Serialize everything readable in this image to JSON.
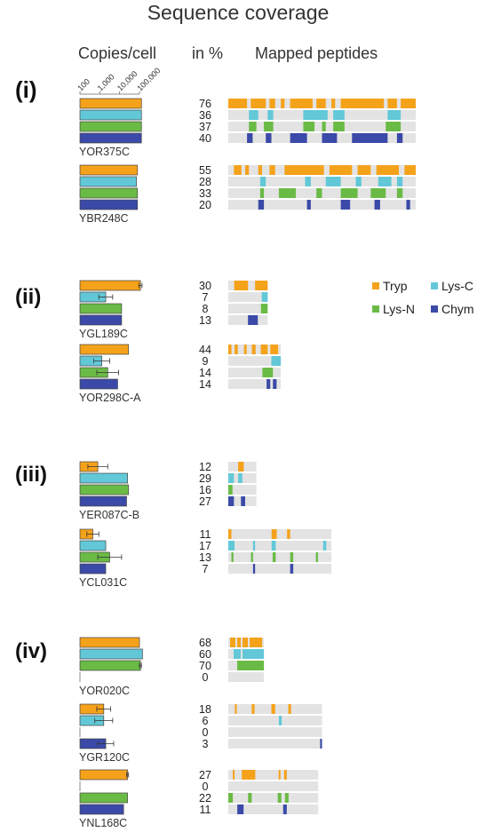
{
  "chart_data": {
    "type": "bar",
    "title": "Sequence coverage",
    "column_headers": {
      "copies": "Copies/cell",
      "percent": "in %",
      "peptides": "Mapped peptides"
    },
    "copies_axis": {
      "scale": "log",
      "ticks": [
        "100",
        "1,000",
        "10,000",
        "100,000"
      ]
    },
    "legend": [
      {
        "label": "Tryp",
        "color": "#f5a21b"
      },
      {
        "label": "Lys-C",
        "color": "#62c8d8"
      },
      {
        "label": "Lys-N",
        "color": "#6abb45"
      },
      {
        "label": "Chym",
        "color": "#3b4aa8"
      }
    ],
    "enzymes": [
      "Tryp",
      "Lys-C",
      "Lys-N",
      "Chym"
    ],
    "groups": [
      {
        "label": "(i)",
        "proteins": [
          {
            "name": "YOR375C",
            "coverage_pct": [
              76,
              36,
              37,
              40
            ],
            "copies_log10": [
              5.1,
              5.1,
              5.1,
              5.1
            ],
            "copies_err": [
              0,
              0,
              0,
              0
            ],
            "track_length": 1.0,
            "peptides": [
              [
                [
                  0.0,
                  0.1
                ],
                [
                  0.12,
                  0.2
                ],
                [
                  0.22,
                  0.25
                ],
                [
                  0.28,
                  0.3
                ],
                [
                  0.33,
                  0.45
                ],
                [
                  0.47,
                  0.52
                ],
                [
                  0.55,
                  0.57
                ],
                [
                  0.6,
                  0.83
                ],
                [
                  0.85,
                  0.9
                ],
                [
                  0.92,
                  1.0
                ]
              ],
              [
                [
                  0.11,
                  0.16
                ],
                [
                  0.21,
                  0.24
                ],
                [
                  0.4,
                  0.53
                ],
                [
                  0.56,
                  0.62
                ],
                [
                  0.85,
                  0.92
                ]
              ],
              [
                [
                  0.11,
                  0.15
                ],
                [
                  0.19,
                  0.24
                ],
                [
                  0.4,
                  0.46
                ],
                [
                  0.5,
                  0.52
                ],
                [
                  0.56,
                  0.62
                ],
                [
                  0.84,
                  0.92
                ]
              ],
              [
                [
                  0.1,
                  0.13
                ],
                [
                  0.2,
                  0.23
                ],
                [
                  0.33,
                  0.42
                ],
                [
                  0.5,
                  0.58
                ],
                [
                  0.66,
                  0.85
                ],
                [
                  0.9,
                  0.93
                ]
              ]
            ]
          },
          {
            "name": "YBR248C",
            "coverage_pct": [
              55,
              28,
              33,
              20
            ],
            "copies_log10": [
              4.9,
              4.85,
              4.9,
              4.9
            ],
            "copies_err": [
              0,
              0,
              0,
              0
            ],
            "track_length": 1.0,
            "peptides": [
              [
                [
                  0.03,
                  0.07
                ],
                [
                  0.09,
                  0.11
                ],
                [
                  0.16,
                  0.18
                ],
                [
                  0.22,
                  0.25
                ],
                [
                  0.3,
                  0.51
                ],
                [
                  0.54,
                  0.66
                ],
                [
                  0.69,
                  0.76
                ],
                [
                  0.79,
                  0.91
                ],
                [
                  0.94,
                  1.0
                ]
              ],
              [
                [
                  0.17,
                  0.2
                ],
                [
                  0.41,
                  0.44
                ],
                [
                  0.52,
                  0.6
                ],
                [
                  0.68,
                  0.71
                ],
                [
                  0.8,
                  0.87
                ],
                [
                  0.9,
                  0.93
                ]
              ],
              [
                [
                  0.17,
                  0.19
                ],
                [
                  0.27,
                  0.36
                ],
                [
                  0.47,
                  0.5
                ],
                [
                  0.6,
                  0.69
                ],
                [
                  0.76,
                  0.84
                ],
                [
                  0.9,
                  0.93
                ]
              ],
              [
                [
                  0.16,
                  0.19
                ],
                [
                  0.42,
                  0.44
                ],
                [
                  0.6,
                  0.65
                ],
                [
                  0.78,
                  0.81
                ],
                [
                  0.95,
                  0.97
                ]
              ]
            ]
          }
        ]
      },
      {
        "label": "(ii)",
        "proteins": [
          {
            "name": "YGL189C",
            "coverage_pct": [
              30,
              7,
              8,
              13
            ],
            "copies_log10": [
              5.05,
              3.3,
              4.1,
              4.1
            ],
            "copies_err": [
              0.08,
              0.35,
              0,
              0
            ],
            "track_length": 0.21,
            "peptides": [
              [
                [
                  0.15,
                  0.5
                ],
                [
                  0.68,
                  1.0
                ]
              ],
              [
                [
                  0.85,
                  1.0
                ]
              ],
              [
                [
                  0.83,
                  1.0
                ]
              ],
              [
                [
                  0.5,
                  0.75
                ]
              ]
            ]
          },
          {
            "name": "YOR298C-A",
            "coverage_pct": [
              44,
              9,
              14,
              14
            ],
            "copies_log10": [
              4.45,
              3.1,
              3.4,
              3.9
            ],
            "copies_err": [
              0,
              0.4,
              0.55,
              0
            ],
            "track_length": 0.28,
            "peptides": [
              [
                [
                  0.0,
                  0.06
                ],
                [
                  0.12,
                  0.18
                ],
                [
                  0.3,
                  0.35
                ],
                [
                  0.45,
                  0.52
                ],
                [
                  0.62,
                  0.75
                ],
                [
                  0.8,
                  0.95
                ]
              ],
              [
                [
                  0.82,
                  1.0
                ]
              ],
              [
                [
                  0.65,
                  0.85
                ]
              ],
              [
                [
                  0.73,
                  0.8
                ],
                [
                  0.85,
                  0.92
                ]
              ]
            ]
          }
        ]
      },
      {
        "label": "(iii)",
        "proteins": [
          {
            "name": "YER087C-B",
            "coverage_pct": [
              12,
              29,
              16,
              27
            ],
            "copies_log10": [
              2.9,
              4.4,
              4.45,
              4.35
            ],
            "copies_err": [
              0.5,
              0,
              0,
              0
            ],
            "track_length": 0.15,
            "peptides": [
              [
                [
                  0.35,
                  0.55
                ]
              ],
              [
                [
                  0.0,
                  0.2
                ],
                [
                  0.35,
                  0.5
                ]
              ],
              [
                [
                  0.0,
                  0.15
                ]
              ],
              [
                [
                  0.0,
                  0.2
                ],
                [
                  0.45,
                  0.6
                ]
              ]
            ]
          },
          {
            "name": "YCL031C",
            "coverage_pct": [
              11,
              17,
              13,
              7
            ],
            "copies_log10": [
              2.65,
              3.3,
              3.5,
              3.3
            ],
            "copies_err": [
              0.3,
              0,
              0.6,
              0
            ],
            "track_length": 0.55,
            "peptides": [
              [
                [
                  0.0,
                  0.03
                ],
                [
                  0.42,
                  0.47
                ],
                [
                  0.57,
                  0.6
                ]
              ],
              [
                [
                  0.0,
                  0.06
                ],
                [
                  0.24,
                  0.26
                ],
                [
                  0.42,
                  0.46
                ],
                [
                  0.92,
                  0.95
                ]
              ],
              [
                [
                  0.03,
                  0.05
                ],
                [
                  0.22,
                  0.24
                ],
                [
                  0.43,
                  0.46
                ],
                [
                  0.6,
                  0.63
                ],
                [
                  0.85,
                  0.87
                ]
              ],
              [
                [
                  0.24,
                  0.26
                ],
                [
                  0.6,
                  0.63
                ]
              ]
            ]
          }
        ]
      },
      {
        "label": "(iv)",
        "proteins": [
          {
            "name": "YOR020C",
            "coverage_pct": [
              68,
              60,
              70,
              0
            ],
            "copies_log10": [
              5.0,
              5.15,
              5.05,
              0
            ],
            "copies_err": [
              0,
              0,
              0.05,
              0
            ],
            "track_length": 0.19,
            "peptides": [
              [
                [
                  0.05,
                  0.2
                ],
                [
                  0.25,
                  0.35
                ],
                [
                  0.4,
                  0.55
                ],
                [
                  0.6,
                  0.95
                ]
              ],
              [
                [
                  0.15,
                  0.35
                ],
                [
                  0.4,
                  1.0
                ]
              ],
              [
                [
                  0.25,
                  1.0
                ]
              ],
              []
            ]
          },
          {
            "name": "YGR120C",
            "coverage_pct": [
              18,
              6,
              0,
              3
            ],
            "copies_log10": [
              3.2,
              3.2,
              0,
              3.3
            ],
            "copies_err": [
              0.35,
              0.45,
              0,
              0.4
            ],
            "track_length": 0.5,
            "peptides": [
              [
                [
                  0.07,
                  0.09
                ],
                [
                  0.25,
                  0.28
                ],
                [
                  0.46,
                  0.5
                ],
                [
                  0.64,
                  0.67
                ]
              ],
              [
                [
                  0.54,
                  0.57
                ]
              ],
              [],
              [
                [
                  0.98,
                  1.0
                ]
              ]
            ]
          },
          {
            "name": "YNL168C",
            "coverage_pct": [
              27,
              0,
              22,
              11
            ],
            "copies_log10": [
              4.4,
              0,
              4.4,
              4.2
            ],
            "copies_err": [
              0.05,
              0,
              0,
              0
            ],
            "track_length": 0.48,
            "peptides": [
              [
                [
                  0.05,
                  0.07
                ],
                [
                  0.15,
                  0.3
                ],
                [
                  0.56,
                  0.58
                ],
                [
                  0.62,
                  0.65
                ]
              ],
              [],
              [
                [
                  0.0,
                  0.05
                ],
                [
                  0.22,
                  0.26
                ],
                [
                  0.55,
                  0.59
                ],
                [
                  0.63,
                  0.67
                ]
              ],
              [
                [
                  0.1,
                  0.17
                ],
                [
                  0.61,
                  0.65
                ]
              ]
            ]
          }
        ]
      }
    ]
  }
}
